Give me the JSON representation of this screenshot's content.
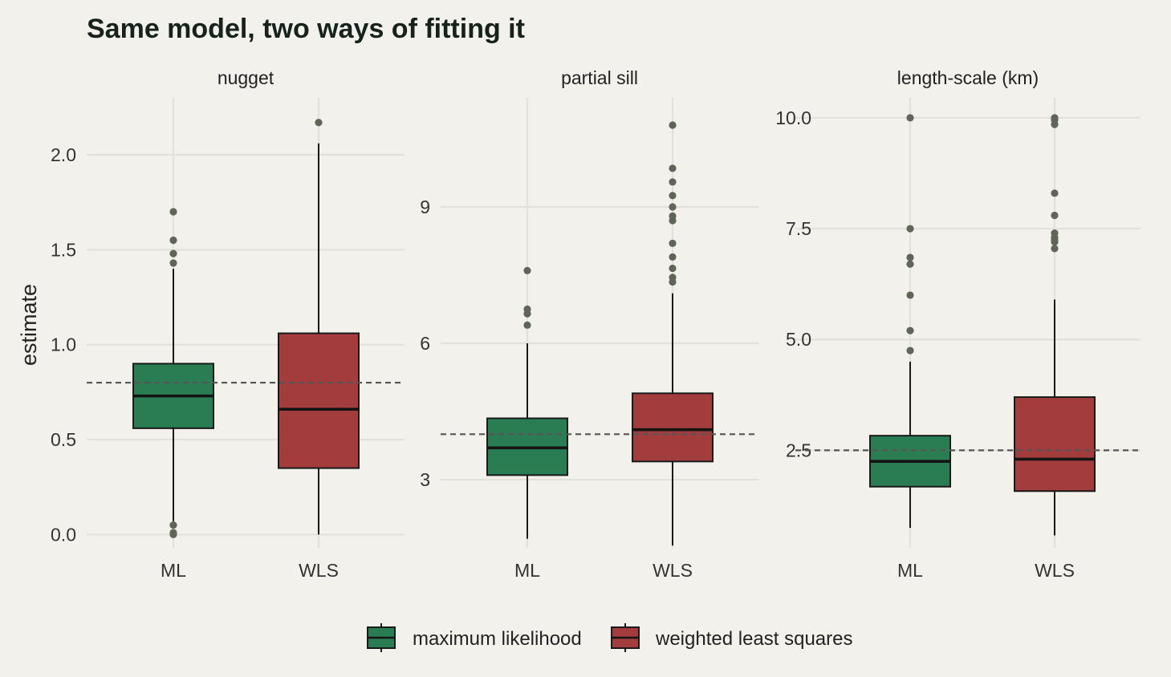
{
  "chart_data": {
    "type": "boxplot",
    "title": "Same model, two ways of fitting it",
    "ylabel": "estimate",
    "colors": {
      "ML": "#2a7d52",
      "WLS": "#a33d3d"
    },
    "legend": {
      "placement": "bottom",
      "entries": [
        {
          "key": "ML",
          "label": "maximum likelihood"
        },
        {
          "key": "WLS",
          "label": "weighted least squares"
        }
      ]
    },
    "panels": [
      {
        "strip": "nugget",
        "ylim": [
          -0.07,
          2.3
        ],
        "yticks": [
          0,
          0.5,
          1,
          1.5,
          2
        ],
        "ytick_labels": [
          "0.0",
          "0.5",
          "1.0",
          "1.5",
          "2.0"
        ],
        "reference": 0.8,
        "boxes": [
          {
            "category": "ML",
            "q1": 0.56,
            "median": 0.73,
            "q3": 0.9,
            "whisker_low": 0.07,
            "whisker_high": 1.4,
            "outliers": [
              1.7,
              1.55,
              1.48,
              1.43,
              0.05,
              0.01,
              0.0
            ]
          },
          {
            "category": "WLS",
            "q1": 0.35,
            "median": 0.66,
            "q3": 1.06,
            "whisker_low": 0.0,
            "whisker_high": 2.06,
            "outliers": [
              2.17
            ]
          }
        ]
      },
      {
        "strip": "partial sill",
        "ylim": [
          1.5,
          11.4
        ],
        "yticks": [
          3,
          6,
          9
        ],
        "ytick_labels": [
          "3",
          "6",
          "9"
        ],
        "reference": 4.0,
        "boxes": [
          {
            "category": "ML",
            "q1": 3.1,
            "median": 3.7,
            "q3": 4.35,
            "whisker_low": 1.7,
            "whisker_high": 6.0,
            "outliers": [
              7.6,
              6.75,
              6.65,
              6.4
            ]
          },
          {
            "category": "WLS",
            "q1": 3.4,
            "median": 4.1,
            "q3": 4.9,
            "whisker_low": 1.55,
            "whisker_high": 7.1,
            "outliers": [
              10.8,
              9.85,
              9.55,
              9.25,
              9.0,
              8.8,
              8.7,
              8.2,
              7.9,
              7.65,
              7.45,
              7.35
            ]
          }
        ]
      },
      {
        "strip": "length-scale (km)",
        "ylim": [
          0.3,
          10.45
        ],
        "yticks": [
          2.5,
          5,
          7.5,
          10
        ],
        "ytick_labels": [
          "2.5",
          "5.0",
          "7.5",
          "10.0"
        ],
        "reference": 2.5,
        "boxes": [
          {
            "category": "ML",
            "q1": 1.68,
            "median": 2.25,
            "q3": 2.83,
            "whisker_low": 0.75,
            "whisker_high": 4.5,
            "outliers": [
              10.0,
              7.5,
              6.85,
              6.7,
              6.0,
              5.2,
              4.75
            ]
          },
          {
            "category": "WLS",
            "q1": 1.58,
            "median": 2.3,
            "q3": 3.7,
            "whisker_low": 0.58,
            "whisker_high": 5.9,
            "outliers": [
              10.0,
              9.95,
              9.85,
              8.3,
              7.8,
              7.4,
              7.3,
              7.25,
              7.2,
              7.05
            ]
          }
        ]
      }
    ]
  }
}
